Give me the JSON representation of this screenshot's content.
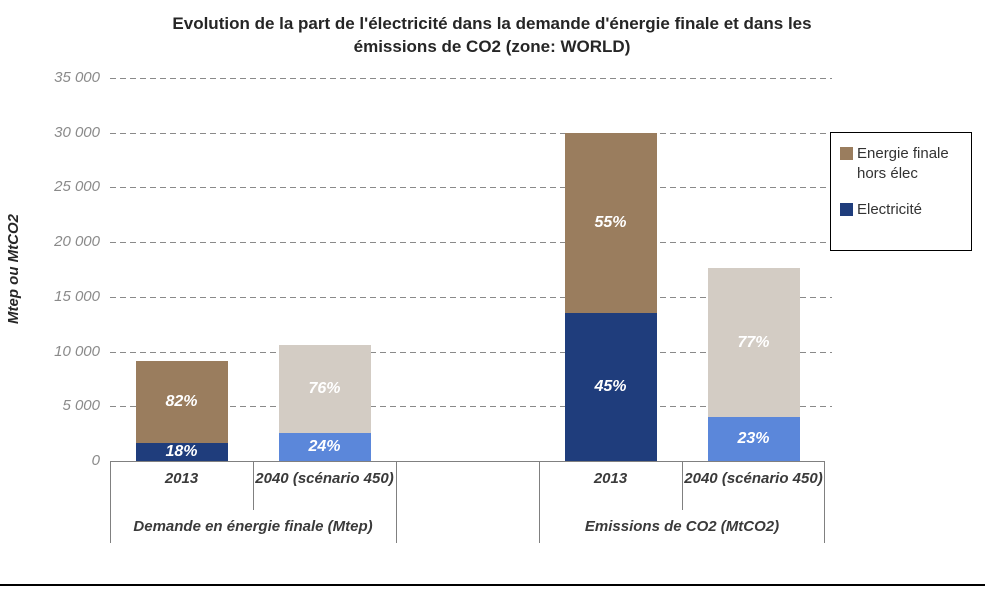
{
  "header": {
    "line1": "Evolution de la part de l'électricité dans la demande d'énergie finale et dans les",
    "line2": "émissions de CO2 (zone: WORLD)"
  },
  "y_axis": {
    "title": "Mtep ou MtCO2",
    "ticks": [
      {
        "label": "35 000",
        "value": 35000
      },
      {
        "label": "30 000",
        "value": 30000
      },
      {
        "label": "25 000",
        "value": 25000
      },
      {
        "label": "20 000",
        "value": 20000
      },
      {
        "label": "15 000",
        "value": 15000
      },
      {
        "label": "10 000",
        "value": 10000
      },
      {
        "label": "5 000",
        "value": 5000
      },
      {
        "label": "0",
        "value": 0
      }
    ]
  },
  "legend": [
    {
      "label": "Energie finale hors élec",
      "color": "#9A7D5E"
    },
    {
      "label": "Electricité",
      "color": "#1F3D7C"
    }
  ],
  "chart_data": {
    "type": "bar",
    "subtype": "stacked",
    "title": "Evolution de la part de l'électricité dans la demande d'énergie finale et dans les émissions de CO2 (zone: WORLD)",
    "ylabel": "Mtep ou MtCO2",
    "unit": "Mtep ou MtCO2",
    "ylim": [
      0,
      35000
    ],
    "gridline_step": 5000,
    "grid": "horizontal-dashed",
    "legend_position": "right",
    "series_names": [
      "Electricité",
      "Energie finale hors élec"
    ],
    "groups": [
      {
        "label": "Demande en énergie finale (Mtep)",
        "bars": [
          {
            "category": "2013",
            "total": 9100,
            "segments": [
              {
                "key": "electricite",
                "name": "Electricité",
                "value": 1650,
                "pct": "18%",
                "color": "#1F3D7C"
              },
              {
                "key": "hors-elec",
                "name": "Energie finale hors élec",
                "value": 7450,
                "pct": "82%",
                "color": "#9A7D5E"
              }
            ]
          },
          {
            "category": "2040 (scénario 450)",
            "total": 10600,
            "segments": [
              {
                "key": "electricite",
                "name": "Electricité",
                "value": 2550,
                "pct": "24%",
                "color": "#5B87DA"
              },
              {
                "key": "hors-elec",
                "name": "Energie finale hors élec",
                "value": 8050,
                "pct": "76%",
                "color": "#D3CCC4"
              }
            ]
          }
        ]
      },
      {
        "label": "Emissions de CO2 (MtCO2)",
        "bars": [
          {
            "category": "2013",
            "total": 30000,
            "segments": [
              {
                "key": "electricite",
                "name": "Electricité",
                "value": 13500,
                "pct": "45%",
                "color": "#1F3D7C"
              },
              {
                "key": "hors-elec",
                "name": "Energie finale hors élec",
                "value": 16500,
                "pct": "55%",
                "color": "#9A7D5E"
              }
            ]
          },
          {
            "category": "2040 (scénario 450)",
            "total": 17600,
            "segments": [
              {
                "key": "electricite",
                "name": "Electricité",
                "value": 4050,
                "pct": "23%",
                "color": "#5B87DA"
              },
              {
                "key": "hors-elec",
                "name": "Energie finale hors élec",
                "value": 13550,
                "pct": "77%",
                "color": "#D3CCC4"
              }
            ]
          }
        ]
      }
    ]
  }
}
